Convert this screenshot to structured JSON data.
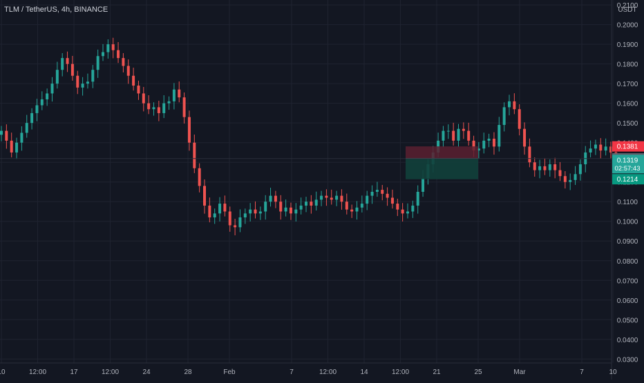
{
  "header": {
    "title": "TLM / TetherUS, 4h, BINANCE"
  },
  "chart_data": {
    "type": "candlestick",
    "symbol": "TLM / TetherUS",
    "interval": "4h",
    "exchange": "BINANCE",
    "currency_label": "USDT",
    "ylim": [
      0.028,
      0.2125
    ],
    "y_ticks": [
      "0.0300",
      "0.0400",
      "0.0500",
      "0.0600",
      "0.0700",
      "0.0800",
      "0.0900",
      "0.1000",
      "0.1100",
      "0.1200",
      "0.1300",
      "0.1400",
      "0.1500",
      "0.1600",
      "0.1700",
      "0.1800",
      "0.1900",
      "0.2000",
      "0.2100"
    ],
    "x_ticks": [
      {
        "label": "10",
        "x": 0
      },
      {
        "label": "12:00",
        "x": 3.5
      },
      {
        "label": "17",
        "x": 7
      },
      {
        "label": "12:00",
        "x": 10.5
      },
      {
        "label": "24",
        "x": 14
      },
      {
        "label": "28",
        "x": 18
      },
      {
        "label": "Feb",
        "x": 22
      },
      {
        "label": "7",
        "x": 28
      },
      {
        "label": "12:00",
        "x": 31.5
      },
      {
        "label": "14",
        "x": 35
      },
      {
        "label": "12:00",
        "x": 38.5
      },
      {
        "label": "21",
        "x": 42
      },
      {
        "label": "25",
        "x": 46
      },
      {
        "label": "Mar",
        "x": 50
      },
      {
        "label": "7",
        "x": 56
      },
      {
        "label": "10",
        "x": 59
      }
    ],
    "closes": [
      0.146,
      0.141,
      0.135,
      0.14,
      0.145,
      0.15,
      0.155,
      0.159,
      0.162,
      0.165,
      0.17,
      0.177,
      0.183,
      0.18,
      0.174,
      0.168,
      0.17,
      0.171,
      0.177,
      0.184,
      0.186,
      0.19,
      0.187,
      0.183,
      0.179,
      0.174,
      0.169,
      0.165,
      0.16,
      0.157,
      0.158,
      0.155,
      0.16,
      0.161,
      0.167,
      0.163,
      0.153,
      0.14,
      0.127,
      0.118,
      0.108,
      0.102,
      0.104,
      0.109,
      0.105,
      0.098,
      0.097,
      0.102,
      0.104,
      0.106,
      0.104,
      0.105,
      0.11,
      0.113,
      0.11,
      0.105,
      0.107,
      0.104,
      0.106,
      0.108,
      0.11,
      0.108,
      0.111,
      0.113,
      0.112,
      0.111,
      0.113,
      0.11,
      0.106,
      0.105,
      0.107,
      0.109,
      0.113,
      0.115,
      0.116,
      0.114,
      0.112,
      0.109,
      0.106,
      0.104,
      0.105,
      0.108,
      0.115,
      0.122,
      0.129,
      0.135,
      0.141,
      0.146,
      0.146,
      0.141,
      0.147,
      0.146,
      0.141,
      0.136,
      0.137,
      0.141,
      0.142,
      0.138,
      0.149,
      0.158,
      0.161,
      0.157,
      0.147,
      0.138,
      0.13,
      0.126,
      0.128,
      0.126,
      0.129,
      0.126,
      0.123,
      0.12,
      0.121,
      0.124,
      0.129,
      0.135,
      0.137,
      0.139,
      0.136,
      0.138,
      0.135,
      0.132
    ],
    "y_start": 0.144,
    "x_start": 0,
    "x_step": 0.49,
    "position": {
      "entry": 0.132,
      "stop": 0.1381,
      "target": 0.1214,
      "x_start": 39.0,
      "x_end": 46.0
    },
    "last_price": "0.1319",
    "countdown": "02:57:43",
    "label_stop": "0.1381",
    "label_entry": "0.1320",
    "label_target": "0.1214",
    "colors": {
      "up": "#26a69a",
      "down": "#ef5350",
      "background": "#131722",
      "grid": "#1f2330",
      "text": "#b2b5be",
      "risk_fill": "#5a2030",
      "reward_fill": "#12403b",
      "stop_label": "#f23645",
      "entry_label": "#5d606b",
      "last_label": "#26a69a",
      "target_label": "#089981"
    }
  }
}
